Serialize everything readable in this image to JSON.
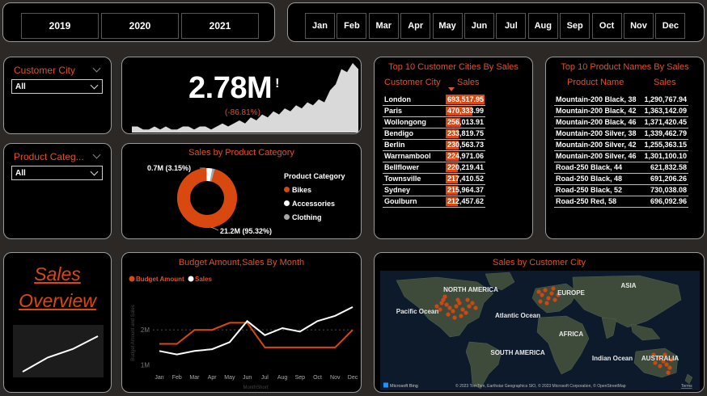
{
  "years": [
    "2019",
    "2020",
    "2021"
  ],
  "months": [
    "Jan",
    "Feb",
    "Mar",
    "Apr",
    "May",
    "Jun",
    "Jul",
    "Aug",
    "Sep",
    "Oct",
    "Nov",
    "Dec"
  ],
  "city_slicer": {
    "title": "Customer City",
    "value": "All"
  },
  "category_slicer": {
    "title": "Product Categ...",
    "value": "All"
  },
  "kpi": {
    "value": "2.78M",
    "flag": "!",
    "change": "(-86.81%)",
    "sparkline": [
      2,
      2,
      1,
      1,
      2,
      1,
      2,
      1,
      1,
      2,
      2,
      1,
      2,
      2,
      1,
      2,
      3,
      2,
      3,
      4,
      3,
      5,
      4,
      6,
      5,
      7,
      6,
      8,
      7,
      9,
      8,
      10,
      9,
      11,
      10,
      14,
      16,
      21,
      20,
      23,
      21
    ]
  },
  "donut": {
    "title": "Sales by Product Category",
    "legend_title": "Product Category",
    "label_small": "0.7M (3.15%)",
    "label_large": "21.2M (95.32%)",
    "items": [
      {
        "name": "Bikes",
        "pct": 95.32,
        "color": "#d9480f"
      },
      {
        "name": "Accessories",
        "pct": 3.15,
        "color": "#ffffff"
      },
      {
        "name": "Clothing",
        "pct": 1.53,
        "color": "#a6a6a6"
      }
    ]
  },
  "cities": {
    "title": "Top 10 Customer Cities By Sales",
    "col1": "Customer City",
    "col2": "Sales",
    "rows": [
      {
        "name": "London",
        "value": "693,517.95",
        "v": 693517.95
      },
      {
        "name": "Paris",
        "value": "470,333.99",
        "v": 470333.99
      },
      {
        "name": "Wollongong",
        "value": "256,013.91",
        "v": 256013.91
      },
      {
        "name": "Bendigo",
        "value": "233,819.75",
        "v": 233819.75
      },
      {
        "name": "Berlin",
        "value": "230,563.73",
        "v": 230563.73
      },
      {
        "name": "Warrnambool",
        "value": "224,971.06",
        "v": 224971.06
      },
      {
        "name": "Bellflower",
        "value": "220,219.41",
        "v": 220219.41
      },
      {
        "name": "Townsville",
        "value": "217,410.52",
        "v": 217410.52
      },
      {
        "name": "Sydney",
        "value": "215,964.37",
        "v": 215964.37
      },
      {
        "name": "Goulburn",
        "value": "212,457.62",
        "v": 212457.62
      }
    ]
  },
  "products": {
    "title": "Top 10 Product Names By Sales",
    "col1": "Product Name",
    "col2": "Sales",
    "rows": [
      {
        "name": "Mountain-200 Black, 38",
        "value": "1,290,767.94"
      },
      {
        "name": "Mountain-200 Black, 42",
        "value": "1,363,142.09"
      },
      {
        "name": "Mountain-200 Black, 46",
        "value": "1,371,420.45"
      },
      {
        "name": "Mountain-200 Silver, 38",
        "value": "1,339,462.79"
      },
      {
        "name": "Mountain-200 Silver, 42",
        "value": "1,255,363.15"
      },
      {
        "name": "Mountain-200 Silver, 46",
        "value": "1,301,100.10"
      },
      {
        "name": "Road-250 Black, 44",
        "value": "621,832.58"
      },
      {
        "name": "Road-250 Black, 48",
        "value": "691,206.26"
      },
      {
        "name": "Road-250 Black, 52",
        "value": "730,038.08"
      },
      {
        "name": "Road-250 Red, 58",
        "value": "696,092.96"
      }
    ]
  },
  "overview": {
    "line1": "Sales",
    "line2": "Overview",
    "trend": [
      1,
      2,
      2.6,
      3.5
    ]
  },
  "chart_data": {
    "type": "line",
    "title": "Budget Amount,Sales By Month",
    "xlabel": "MonthShort",
    "ylabel": "Budget Amount and Sales",
    "categories": [
      "Jan",
      "Feb",
      "Mar",
      "Apr",
      "May",
      "Jun",
      "Jul",
      "Aug",
      "Sep",
      "Oct",
      "Nov",
      "Dec"
    ],
    "yticks": [
      "1M",
      "2M"
    ],
    "ylim": [
      0.9,
      2.9
    ],
    "series": [
      {
        "name": "Budget Amount",
        "color": "#d9480f",
        "values": [
          1.6,
          1.6,
          2.0,
          2.0,
          2.2,
          2.2,
          1.5,
          1.5,
          1.5,
          1.5,
          1.5,
          2.0
        ]
      },
      {
        "name": "Sales",
        "color": "#ffffff",
        "values": [
          1.4,
          1.3,
          1.4,
          1.45,
          1.65,
          2.25,
          1.85,
          2.05,
          1.95,
          2.25,
          2.4,
          2.65
        ]
      }
    ]
  },
  "map": {
    "title": "Sales by Customer City",
    "labels": [
      "NORTH AMERICA",
      "EUROPE",
      "ASIA",
      "Pacific Ocean",
      "Atlantic Ocean",
      "AFRICA",
      "SOUTH AMERICA",
      "Indian Ocean",
      "AUSTRALIA"
    ],
    "brand": "Microsoft Bing",
    "credits": "© 2023 TomTom, Earthstar Geographics SIO, © 2023 Microsoft Corporation, © OpenStreetMap",
    "terms": "Terms"
  }
}
